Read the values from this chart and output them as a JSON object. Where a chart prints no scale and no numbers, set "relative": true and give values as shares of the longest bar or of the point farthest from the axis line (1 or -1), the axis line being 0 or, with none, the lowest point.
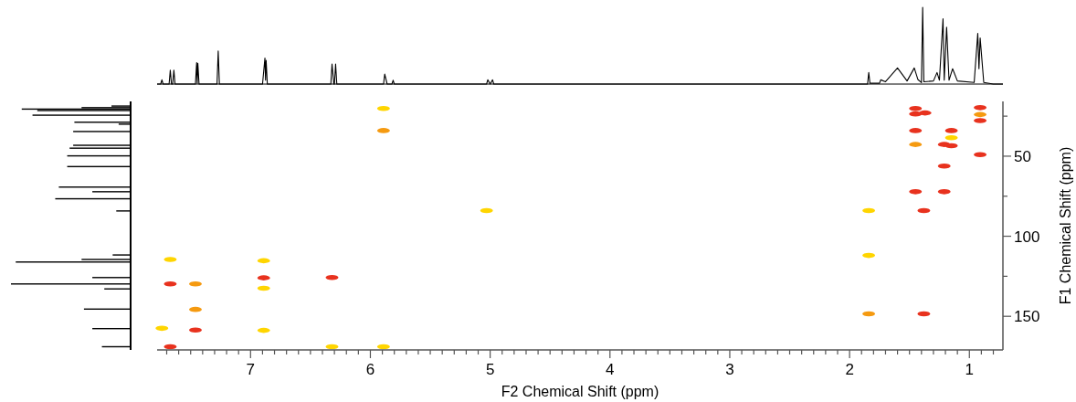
{
  "chart_data": [
    {
      "type": "line",
      "relative": true,
      "tick_labels": false,
      "color": "#000000",
      "xlim": [
        7.78,
        0.72
      ],
      "x": [
        7.78,
        7.75,
        7.74,
        7.73,
        7.68,
        7.67,
        7.66,
        7.65,
        7.64,
        7.63,
        7.46,
        7.45,
        7.445,
        7.44,
        7.43,
        7.28,
        7.27,
        7.26,
        6.9,
        6.88,
        6.875,
        6.87,
        6.86,
        6.33,
        6.32,
        6.305,
        6.3,
        6.29,
        6.28,
        5.89,
        5.88,
        5.86,
        5.82,
        5.81,
        5.8,
        5.03,
        5.02,
        5.0,
        4.98,
        4.97,
        1.85,
        1.84,
        1.83,
        1.75,
        1.74,
        1.7,
        1.6,
        1.52,
        1.46,
        1.43,
        1.4,
        1.39,
        1.38,
        1.3,
        1.27,
        1.25,
        1.22,
        1.21,
        1.19,
        1.17,
        1.14,
        1.1,
        0.96,
        0.93,
        0.92,
        0.91,
        0.88,
        0.8,
        0.72
      ],
      "values": [
        0,
        0,
        0.055,
        0,
        0,
        0.18,
        0,
        0,
        0.18,
        0,
        0,
        0.28,
        0.01,
        0.27,
        0,
        0,
        0.43,
        0,
        0,
        0.34,
        0.05,
        0.31,
        0,
        0,
        0.26,
        0,
        0,
        0.26,
        0,
        0,
        0.13,
        0,
        0,
        0.05,
        0,
        0,
        0.055,
        0,
        0.055,
        0,
        0,
        0.15,
        0.01,
        0.01,
        0.055,
        0.03,
        0.21,
        0.04,
        0.21,
        0.06,
        0.02,
        1.0,
        0.03,
        0.04,
        0.15,
        0.05,
        0.85,
        0.05,
        0.74,
        0.05,
        0.2,
        0.04,
        0.02,
        0.66,
        0.2,
        0.6,
        0.02,
        0,
        0
      ]
    },
    {
      "type": "bar",
      "orientation": "horizontal",
      "relative": true,
      "tick_labels": false,
      "color": "#000000",
      "ylim": [
        171,
        15.8
      ],
      "x": [
        18.7,
        19.7,
        20.6,
        21.5,
        24.4,
        28.8,
        30,
        34.6,
        43.2,
        45,
        49.8,
        56.5,
        69.3,
        72.2,
        76.6,
        84.2,
        111.7,
        114.5,
        116.1,
        125.8,
        129.8,
        132.9,
        145.5,
        157.7,
        169
      ],
      "values": [
        0.16,
        0.41,
        0.91,
        0.78,
        0.82,
        0.47,
        0.1,
        0.48,
        0.48,
        0.51,
        0.53,
        0.53,
        0.6,
        0.32,
        0.63,
        0.12,
        0.15,
        0.41,
        0.96,
        0.32,
        1.0,
        0.22,
        0.39,
        0.32,
        0.24
      ]
    },
    {
      "type": "scatter",
      "xlabel": "F2 Chemical Shift (ppm)",
      "ylabel": "F1 Chemical Shift (ppm)",
      "xlim": [
        7.78,
        0.72
      ],
      "ylim": [
        171,
        15.8
      ],
      "xticks": [
        {
          "value": 7.7,
          "label": null
        },
        {
          "value": 7.6,
          "label": null
        },
        {
          "value": 7.5,
          "label": null
        },
        {
          "value": 7.4,
          "label": null
        },
        {
          "value": 7.3,
          "label": null
        },
        {
          "value": 7.2,
          "label": null
        },
        {
          "value": 7.1,
          "label": null
        },
        7,
        {
          "value": 6.9,
          "label": null
        },
        {
          "value": 6.8,
          "label": null
        },
        {
          "value": 6.7,
          "label": null
        },
        {
          "value": 6.6,
          "label": null
        },
        {
          "value": 6.5,
          "label": null
        },
        {
          "value": 6.4,
          "label": null
        },
        {
          "value": 6.3,
          "label": null
        },
        {
          "value": 6.2,
          "label": null
        },
        {
          "value": 6.1,
          "label": null
        },
        6,
        {
          "value": 5.9,
          "label": null
        },
        {
          "value": 5.8,
          "label": null
        },
        {
          "value": 5.7,
          "label": null
        },
        {
          "value": 5.6,
          "label": null
        },
        {
          "value": 5.5,
          "label": null
        },
        {
          "value": 5.4,
          "label": null
        },
        {
          "value": 5.3,
          "label": null
        },
        {
          "value": 5.2,
          "label": null
        },
        {
          "value": 5.1,
          "label": null
        },
        5,
        {
          "value": 4.9,
          "label": null
        },
        {
          "value": 4.8,
          "label": null
        },
        {
          "value": 4.7,
          "label": null
        },
        {
          "value": 4.6,
          "label": null
        },
        {
          "value": 4.5,
          "label": null
        },
        {
          "value": 4.4,
          "label": null
        },
        {
          "value": 4.3,
          "label": null
        },
        {
          "value": 4.2,
          "label": null
        },
        {
          "value": 4.1,
          "label": null
        },
        4,
        {
          "value": 3.9,
          "label": null
        },
        {
          "value": 3.8,
          "label": null
        },
        {
          "value": 3.7,
          "label": null
        },
        {
          "value": 3.6,
          "label": null
        },
        {
          "value": 3.5,
          "label": null
        },
        {
          "value": 3.4,
          "label": null
        },
        {
          "value": 3.3,
          "label": null
        },
        {
          "value": 3.2,
          "label": null
        },
        {
          "value": 3.1,
          "label": null
        },
        3,
        {
          "value": 2.9,
          "label": null
        },
        {
          "value": 2.8,
          "label": null
        },
        {
          "value": 2.7,
          "label": null
        },
        {
          "value": 2.6,
          "label": null
        },
        {
          "value": 2.5,
          "label": null
        },
        {
          "value": 2.4,
          "label": null
        },
        {
          "value": 2.3,
          "label": null
        },
        {
          "value": 2.2,
          "label": null
        },
        {
          "value": 2.1,
          "label": null
        },
        2,
        {
          "value": 1.9,
          "label": null
        },
        {
          "value": 1.8,
          "label": null
        },
        {
          "value": 1.7,
          "label": null
        },
        {
          "value": 1.6,
          "label": null
        },
        {
          "value": 1.5,
          "label": null
        },
        {
          "value": 1.4,
          "label": null
        },
        {
          "value": 1.3,
          "label": null
        },
        {
          "value": 1.2,
          "label": null
        },
        {
          "value": 1.1,
          "label": null
        },
        1,
        {
          "value": 0.9,
          "label": null
        },
        {
          "value": 0.8,
          "label": null
        }
      ],
      "yticks": [
        {
          "value": 25,
          "label": null
        },
        50,
        {
          "value": 75,
          "label": null
        },
        100,
        {
          "value": 125,
          "label": null
        },
        150
      ],
      "x": [
        7.67,
        7.67,
        7.67,
        7.74,
        7.46,
        7.46,
        7.46,
        6.89,
        6.89,
        6.89,
        6.89,
        6.32,
        6.32,
        5.89,
        5.89,
        5.89,
        5.03,
        1.84,
        1.84,
        1.84,
        1.45,
        1.45,
        1.37,
        1.45,
        1.45,
        1.45,
        1.38,
        1.38,
        1.15,
        1.21,
        1.21,
        1.21,
        1.15,
        1.15,
        0.91,
        0.91,
        0.91,
        0.91
      ],
      "values": [
        114.5,
        129.8,
        169,
        157.5,
        129.8,
        145.7,
        158.6,
        115.3,
        126,
        132.5,
        158.8,
        125.8,
        169,
        20.2,
        34,
        169,
        84,
        84,
        112,
        148.5,
        20.2,
        23.6,
        23,
        34,
        42.7,
        72.2,
        84,
        148.5,
        38.5,
        42.7,
        56.2,
        72.2,
        34,
        43.5,
        24,
        19.7,
        27.8,
        49
      ],
      "colors": [
        "#ffd500",
        "#e8321e",
        "#e8321e",
        "#ffd500",
        "#f59a10",
        "#f59a10",
        "#e8321e",
        "#ffd500",
        "#e8321e",
        "#ffd500",
        "#ffd500",
        "#e8321e",
        "#ffd500",
        "#ffd500",
        "#f59a10",
        "#ffd500",
        "#ffd500",
        "#ffd500",
        "#ffd500",
        "#f59a10",
        "#e8321e",
        "#e8321e",
        "#e8321e",
        "#e8321e",
        "#f59a10",
        "#e8321e",
        "#e8321e",
        "#e8321e",
        "#ffd500",
        "#e8321e",
        "#e8321e",
        "#e8321e",
        "#e8321e",
        "#e8321e",
        "#f59a10",
        "#e8321e",
        "#e8321e",
        "#e8321e"
      ]
    }
  ]
}
